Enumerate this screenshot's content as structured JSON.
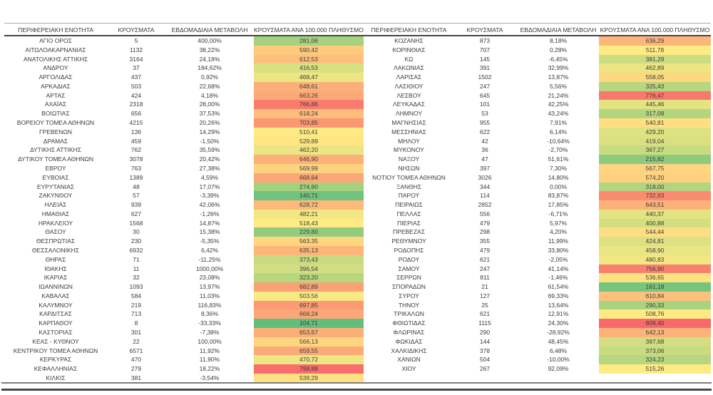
{
  "chart_data": {
    "type": "heatmap",
    "title": "",
    "columns": [
      "ΠΕΡΙΦΕΡΕΙΑΚΗ ΕΝΟΤΗΤΑ",
      "ΚΡΟΥΣΜΑΤΑ",
      "ΕΒΔΟΜΑΔΙΑΙΑ ΜΕΤΑΒΟΛΗ",
      "ΚΡΟΥΣΜΑΤΑ ΑΝΑ 100.000 ΠΛΗΘΥΣΜΟ"
    ],
    "color_scale": {
      "applies_to_column": 3,
      "min_color": "#63BE7B",
      "mid_color": "#FFEB84",
      "max_color": "#F8696B",
      "mid_rule": "percentile-50"
    },
    "tables": [
      {
        "rows": [
          [
            "ΑΓΙΟ ΟΡΟΣ",
            "5",
            "400,00%",
            "281,06"
          ],
          [
            "ΑΙΤΩΛΟΑΚΑΡΝΑΝΙΑΣ",
            "1132",
            "38,22%",
            "590,42"
          ],
          [
            "ΑΝΑΤΟΛΙΚΗΣ ΑΤΤΙΚΗΣ",
            "3164",
            "24,18%",
            "612,53"
          ],
          [
            "ΑΝΔΡΟΥ",
            "37",
            "184,62%",
            "416,53"
          ],
          [
            "ΑΡΓΟΛΙΔΑΣ",
            "437",
            "0,92%",
            "468,47"
          ],
          [
            "ΑΡΚΑΔΙΑΣ",
            "503",
            "22,68%",
            "648,61"
          ],
          [
            "ΑΡΤΑΣ",
            "424",
            "4,18%",
            "663,26"
          ],
          [
            "ΑΧΑΪΑΣ",
            "2318",
            "28,00%",
            "766,86"
          ],
          [
            "ΒΟΙΩΤΙΑΣ",
            "656",
            "37,53%",
            "618,24"
          ],
          [
            "ΒΟΡΕΙΟΥ ΤΟΜΕΑ ΑΘΗΝΩΝ",
            "4215",
            "20,26%",
            "703,85"
          ],
          [
            "ΓΡΕΒΕΝΩΝ",
            "136",
            "14,29%",
            "510,41"
          ],
          [
            "ΔΡΑΜΑΣ",
            "459",
            "-1,50%",
            "529,89"
          ],
          [
            "ΔΥΤΙΚΗΣ ΑΤΤΙΚΗΣ",
            "762",
            "35,59%",
            "462,20"
          ],
          [
            "ΔΥΤΙΚΟΥ ΤΟΜΕΑ ΑΘΗΝΩΝ",
            "3078",
            "20,42%",
            "646,90"
          ],
          [
            "ΕΒΡΟΥ",
            "763",
            "27,38%",
            "569,99"
          ],
          [
            "ΕΥΒΟΙΑΣ",
            "1389",
            "4,59%",
            "668,64"
          ],
          [
            "ΕΥΡΥΤΑΝΙΑΣ",
            "48",
            "17,07%",
            "274,90"
          ],
          [
            "ΖΑΚΥΝΘΟΥ",
            "57",
            "-3,39%",
            "140,71"
          ],
          [
            "ΗΛΕΙΑΣ",
            "939",
            "42,06%",
            "628,72"
          ],
          [
            "ΗΜΑΘΙΑΣ",
            "627",
            "-1,26%",
            "482,21"
          ],
          [
            "ΗΡΑΚΛΕΙΟΥ",
            "1568",
            "14,87%",
            "518,43"
          ],
          [
            "ΘΑΣΟΥ",
            "30",
            "15,38%",
            "229,80"
          ],
          [
            "ΘΕΣΠΡΩΤΙΑΣ",
            "230",
            "-5,35%",
            "563,35"
          ],
          [
            "ΘΕΣΣΑΛΟΝΙΚΗΣ",
            "6932",
            "6,42%",
            "635,13"
          ],
          [
            "ΘΗΡΑΣ",
            "71",
            "-11,25%",
            "373,43"
          ],
          [
            "ΙΘΑΚΗΣ",
            "11",
            "1000,00%",
            "396,54"
          ],
          [
            "ΙΚΑΡΙΑΣ",
            "32",
            "23,08%",
            "323,20"
          ],
          [
            "ΙΩΑΝΝΙΝΩΝ",
            "1093",
            "13,97%",
            "682,89"
          ],
          [
            "ΚΑΒΑΛΑΣ",
            "584",
            "11,03%",
            "503,56"
          ],
          [
            "ΚΑΛΥΜΝΟΥ",
            "219",
            "116,83%",
            "697,85"
          ],
          [
            "ΚΑΡΔΙΤΣΑΣ",
            "713",
            "8,36%",
            "668,24"
          ],
          [
            "ΚΑΡΠΑΘΟΥ",
            "8",
            "-33,33%",
            "104,71"
          ],
          [
            "ΚΑΣΤΟΡΙΑΣ",
            "301",
            "-7,38%",
            "653,67"
          ],
          [
            "ΚΕΑΣ - ΚΥΘΝΟΥ",
            "22",
            "100,00%",
            "566,13"
          ],
          [
            "ΚΕΝΤΡΙΚΟΥ ΤΟΜΕΑ ΑΘΗΝΩΝ",
            "6571",
            "11,92%",
            "659,55"
          ],
          [
            "ΚΕΡΚΥΡΑΣ",
            "470",
            "11,90%",
            "470,72"
          ],
          [
            "ΚΕΦΑΛΛΗΝΙΑΣ",
            "279",
            "18,22%",
            "798,88"
          ],
          [
            "ΚΙΛΚΙΣ",
            "381",
            "-3,54%",
            "539,29"
          ]
        ]
      },
      {
        "rows": [
          [
            "ΚΟΖΑΝΗΣ",
            "873",
            "8,18%",
            "636,29"
          ],
          [
            "ΚΟΡΙΝΘΙΑΣ",
            "707",
            "0,28%",
            "511,78"
          ],
          [
            "ΚΩ",
            "145",
            "-6,45%",
            "381,29"
          ],
          [
            "ΛΑΚΩΝΙΑΣ",
            "391",
            "32,99%",
            "462,89"
          ],
          [
            "ΛΑΡΙΣΑΣ",
            "1502",
            "13,87%",
            "558,05"
          ],
          [
            "ΛΑΣΙΘΙΟΥ",
            "247",
            "5,56%",
            "325,43"
          ],
          [
            "ΛΕΣΒΟΥ",
            "645",
            "21,24%",
            "776,47"
          ],
          [
            "ΛΕΥΚΑΔΑΣ",
            "101",
            "42,25%",
            "445,46"
          ],
          [
            "ΛΗΜΝΟΥ",
            "53",
            "43,24%",
            "317,08"
          ],
          [
            "ΜΑΓΝΗΣΙΑΣ",
            "955",
            "7,91%",
            "540,81"
          ],
          [
            "ΜΕΣΣΗΝΙΑΣ",
            "622",
            "6,14%",
            "429,20"
          ],
          [
            "ΜΗΛΟΥ",
            "42",
            "-10,64%",
            "419,04"
          ],
          [
            "ΜΥΚΟΝΟΥ",
            "36",
            "-2,70%",
            "367,27"
          ],
          [
            "ΝΑΞΟΥ",
            "47",
            "51,61%",
            "215,82"
          ],
          [
            "ΝΗΣΩΝ",
            "397",
            "7,30%",
            "567,75"
          ],
          [
            "ΝΟΤΙΟΥ ΤΟΜΕΑ ΑΘΗΝΩΝ",
            "3026",
            "14,80%",
            "574,20"
          ],
          [
            "ΞΑΝΘΗΣ",
            "344",
            "0,00%",
            "318,00"
          ],
          [
            "ΠΑΡΟΥ",
            "114",
            "83,87%",
            "732,93"
          ],
          [
            "ΠΕΙΡΑΙΩΣ",
            "2852",
            "17,85%",
            "643,51"
          ],
          [
            "ΠΕΛΛΑΣ",
            "556",
            "-6,71%",
            "440,37"
          ],
          [
            "ΠΙΕΡΙΑΣ",
            "479",
            "5,97%",
            "400,88"
          ],
          [
            "ΠΡΕΒΕΖΑΣ",
            "298",
            "4,20%",
            "544,44"
          ],
          [
            "ΡΕΘΥΜΝΟΥ",
            "355",
            "11,99%",
            "424,81"
          ],
          [
            "ΡΟΔΟΠΗΣ",
            "479",
            "33,80%",
            "458,90"
          ],
          [
            "ΡΟΔΟΥ",
            "621",
            "-2,05%",
            "480,83"
          ],
          [
            "ΣΑΜΟΥ",
            "247",
            "41,14%",
            "756,90"
          ],
          [
            "ΣΕΡΡΩΝ",
            "811",
            "-1,46%",
            "536,65"
          ],
          [
            "ΣΠΟΡΑΔΩΝ",
            "21",
            "61,54%",
            "161,18"
          ],
          [
            "ΣΥΡΟΥ",
            "127",
            "69,33%",
            "610,84"
          ],
          [
            "ΤΗΝΟΥ",
            "25",
            "13,64%",
            "290,33"
          ],
          [
            "ΤΡΙΚΑΛΩΝ",
            "621",
            "12,91%",
            "508,76"
          ],
          [
            "ΦΘΙΩΤΙΔΑΣ",
            "1115",
            "24,30%",
            "809,40"
          ],
          [
            "ΦΛΩΡΙΝΑΣ",
            "290",
            "-28,92%",
            "642,13"
          ],
          [
            "ΦΩΚΙΔΑΣ",
            "144",
            "48,45%",
            "397,68"
          ],
          [
            "ΧΑΛΚΙΔΙΚΗΣ",
            "378",
            "6,48%",
            "373,06"
          ],
          [
            "ΧΑΝΙΩΝ",
            "504",
            "-10,00%",
            "324,23"
          ],
          [
            "ΧΙΟΥ",
            "267",
            "92,09%",
            "515,26"
          ]
        ]
      }
    ]
  }
}
